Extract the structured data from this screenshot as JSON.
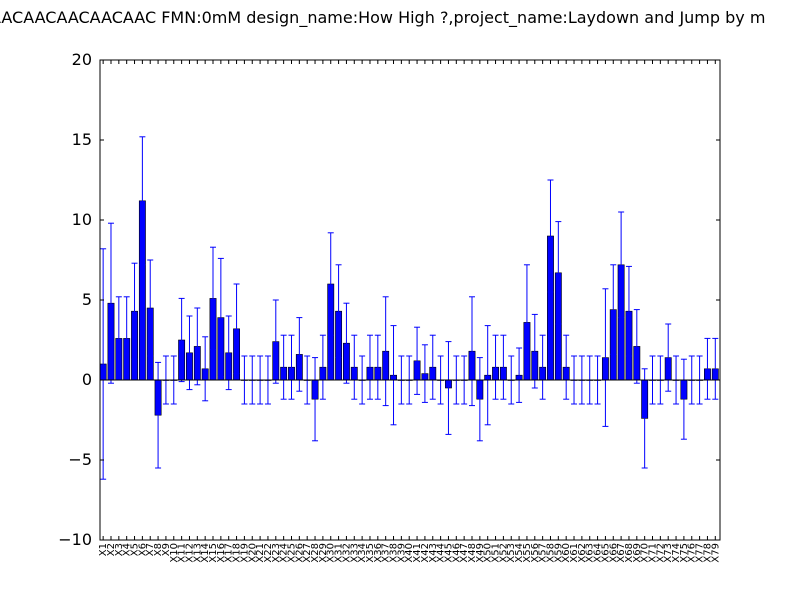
{
  "chart_data": {
    "type": "bar",
    "title": "AACAACAACAACAAC  FMN:0mM  design_name:How High ?,project_name:Laydown and Jump by m",
    "xlabel": "",
    "ylabel": "",
    "ylim": [
      -10,
      20
    ],
    "yticks": [
      -10,
      -5,
      0,
      5,
      10,
      15,
      20
    ],
    "grid": false,
    "bar_color": "#0000ff",
    "error_color": "#0000ff",
    "categories": [
      "X1",
      "X2",
      "X3",
      "X4",
      "X5",
      "X6",
      "X7",
      "X8",
      "X9",
      "X10",
      "X11",
      "X12",
      "X13",
      "X14",
      "X15",
      "X16",
      "X17",
      "X18",
      "X19",
      "X20",
      "X21",
      "X22",
      "X23",
      "X24",
      "X25",
      "X26",
      "X27",
      "X28",
      "X29",
      "X30",
      "X31",
      "X32",
      "X33",
      "X34",
      "X35",
      "X36",
      "X37",
      "X38",
      "X39",
      "X40",
      "X41",
      "X42",
      "X43",
      "X44",
      "X45",
      "X46",
      "X47",
      "X48",
      "X49",
      "X50",
      "X51",
      "X52",
      "X53",
      "X54",
      "X55",
      "X56",
      "X57",
      "X58",
      "X59",
      "X60",
      "X61",
      "X62",
      "X63",
      "X64",
      "X65",
      "X66",
      "X67",
      "X68",
      "X69",
      "X70",
      "X71",
      "X72",
      "X73",
      "X74",
      "X75",
      "X76",
      "X77",
      "X78",
      "X79"
    ],
    "values": [
      1.0,
      4.8,
      2.6,
      2.6,
      4.3,
      11.2,
      4.5,
      -2.2,
      0.0,
      0.0,
      2.5,
      1.7,
      2.1,
      0.7,
      5.1,
      3.9,
      1.7,
      3.2,
      0.0,
      0.0,
      0.0,
      0.0,
      2.4,
      0.8,
      0.8,
      1.6,
      0.0,
      -1.2,
      0.8,
      6.0,
      4.3,
      2.3,
      0.8,
      0.0,
      0.8,
      0.8,
      1.8,
      0.3,
      0.0,
      0.0,
      1.2,
      0.4,
      0.8,
      0.0,
      -0.5,
      0.0,
      0.0,
      1.8,
      -1.2,
      0.3,
      0.8,
      0.8,
      0.0,
      0.3,
      3.6,
      1.8,
      0.8,
      9.0,
      6.7,
      0.8,
      0.0,
      0.0,
      0.0,
      0.0,
      1.4,
      4.4,
      7.2,
      4.3,
      2.1,
      -2.4,
      0.0,
      0.0,
      1.4,
      0.0,
      -1.2,
      0.0,
      0.0,
      0.7,
      0.7
    ],
    "errors": [
      7.2,
      5.0,
      2.6,
      2.6,
      3.0,
      4.0,
      3.0,
      3.3,
      1.5,
      1.5,
      2.6,
      2.3,
      2.4,
      2.0,
      3.2,
      3.7,
      2.3,
      2.8,
      1.5,
      1.5,
      1.5,
      1.5,
      2.6,
      2.0,
      2.0,
      2.3,
      1.5,
      2.6,
      2.0,
      3.2,
      2.9,
      2.5,
      2.0,
      1.5,
      2.0,
      2.0,
      3.4,
      3.1,
      1.5,
      1.5,
      2.1,
      1.8,
      2.0,
      1.5,
      2.9,
      1.5,
      1.5,
      3.4,
      2.6,
      3.1,
      2.0,
      2.0,
      1.5,
      1.7,
      3.6,
      2.3,
      2.0,
      3.5,
      3.2,
      2.0,
      1.5,
      1.5,
      1.5,
      1.5,
      4.3,
      2.8,
      3.3,
      2.8,
      2.3,
      3.1,
      1.5,
      1.5,
      2.1,
      1.5,
      2.5,
      1.5,
      1.5,
      1.9,
      1.9
    ]
  }
}
